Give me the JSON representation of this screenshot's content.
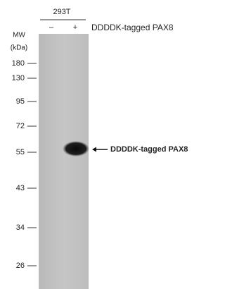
{
  "header": {
    "cell_line": "293T",
    "lanes": [
      "–",
      "+"
    ],
    "lane_label": "DDDDK-tagged PAX8"
  },
  "mw": {
    "title": "MW",
    "unit": "(kDa)",
    "markers": [
      "180",
      "130",
      "95",
      "72",
      "55",
      "43",
      "34",
      "26"
    ]
  },
  "band": {
    "label": "DDDDK-tagged PAX8"
  }
}
